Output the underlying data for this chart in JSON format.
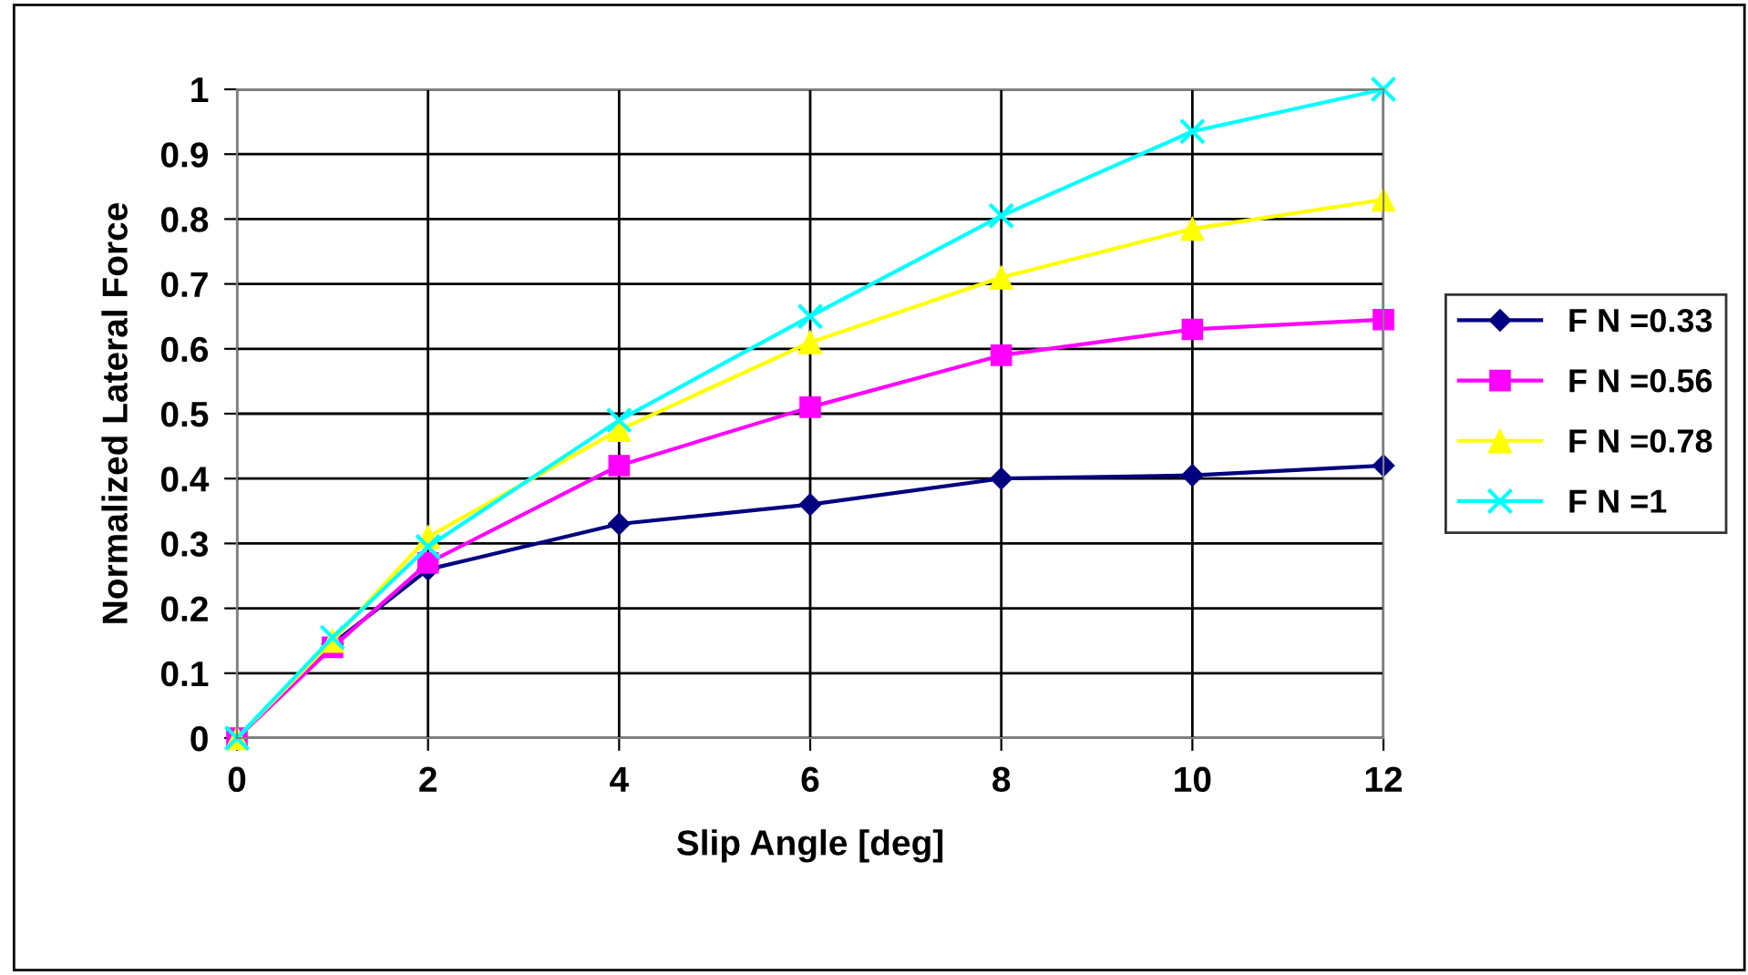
{
  "chart_data": {
    "type": "line",
    "xlabel": "Slip Angle [deg]",
    "ylabel": "Normalized Lateral Force",
    "x": [
      0,
      1,
      2,
      4,
      6,
      8,
      10,
      12
    ],
    "xlim": [
      0,
      12
    ],
    "xticks": [
      0,
      2,
      4,
      6,
      8,
      10,
      12
    ],
    "ylim": [
      0,
      1
    ],
    "yticks": [
      0,
      0.1,
      0.2,
      0.3,
      0.4,
      0.5,
      0.6,
      0.7,
      0.8,
      0.9,
      1
    ],
    "grid": true,
    "legend": "right",
    "series": [
      {
        "name": "F N =0.33",
        "color": "#000080",
        "marker": "diamond",
        "values": [
          0,
          0.145,
          0.26,
          0.33,
          0.36,
          0.4,
          0.405,
          0.42
        ]
      },
      {
        "name": "F N =0.56",
        "color": "#ff00ff",
        "marker": "square",
        "values": [
          0,
          0.14,
          0.27,
          0.42,
          0.51,
          0.59,
          0.63,
          0.645
        ]
      },
      {
        "name": "F N =0.78",
        "color": "#ffff00",
        "marker": "triangle",
        "values": [
          0,
          0.15,
          0.31,
          0.475,
          0.61,
          0.71,
          0.785,
          0.83
        ]
      },
      {
        "name": "F N =1",
        "color": "#00ffff",
        "marker": "cross",
        "values": [
          0,
          0.155,
          0.295,
          0.49,
          0.65,
          0.805,
          0.935,
          1.0
        ]
      }
    ]
  }
}
